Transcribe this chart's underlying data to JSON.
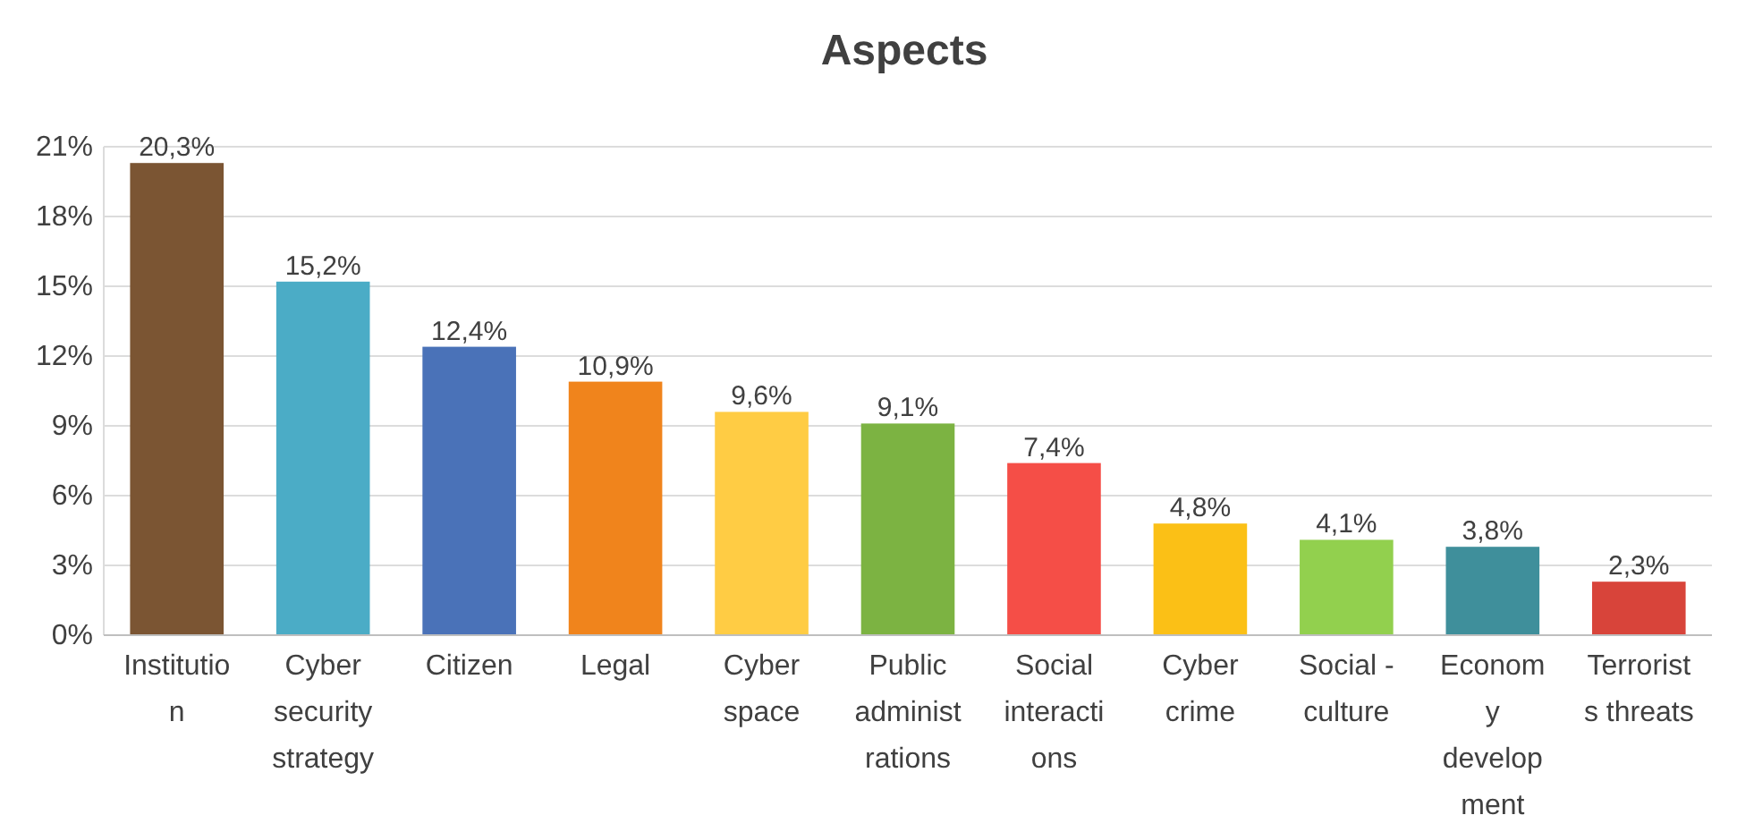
{
  "chart_data": {
    "type": "bar",
    "title": "Aspects",
    "categories": [
      "Institution",
      "Cyber security strategy",
      "Citizen",
      "Legal",
      "Cyber space",
      "Public administrations",
      "Social interactions",
      "Cyber crime",
      "Social - culture",
      "Economy development",
      "Terrorists threats"
    ],
    "values": [
      20.3,
      15.2,
      12.4,
      10.9,
      9.6,
      9.1,
      7.4,
      4.8,
      4.1,
      3.8,
      2.3
    ],
    "value_labels": [
      "20,3%",
      "15,2%",
      "12,4%",
      "10,9%",
      "9,6%",
      "9,1%",
      "7,4%",
      "4,8%",
      "4,1%",
      "3,8%",
      "2,3%"
    ],
    "colors": [
      "#7b5533",
      "#4bacc6",
      "#4a72b8",
      "#f0841c",
      "#ffcc44",
      "#7cb342",
      "#f54e47",
      "#fbc016",
      "#92d04e",
      "#3f8f9b",
      "#d8443a"
    ],
    "ylim": [
      0,
      21
    ],
    "yticks": [
      {
        "value": 0,
        "label": "0%"
      },
      {
        "value": 3,
        "label": "3%"
      },
      {
        "value": 6,
        "label": "6%"
      },
      {
        "value": 9,
        "label": "9%"
      },
      {
        "value": 12,
        "label": "12%"
      },
      {
        "value": 15,
        "label": "15%"
      },
      {
        "value": 18,
        "label": "18%"
      },
      {
        "value": 21,
        "label": "21%"
      }
    ],
    "grid": "y"
  }
}
